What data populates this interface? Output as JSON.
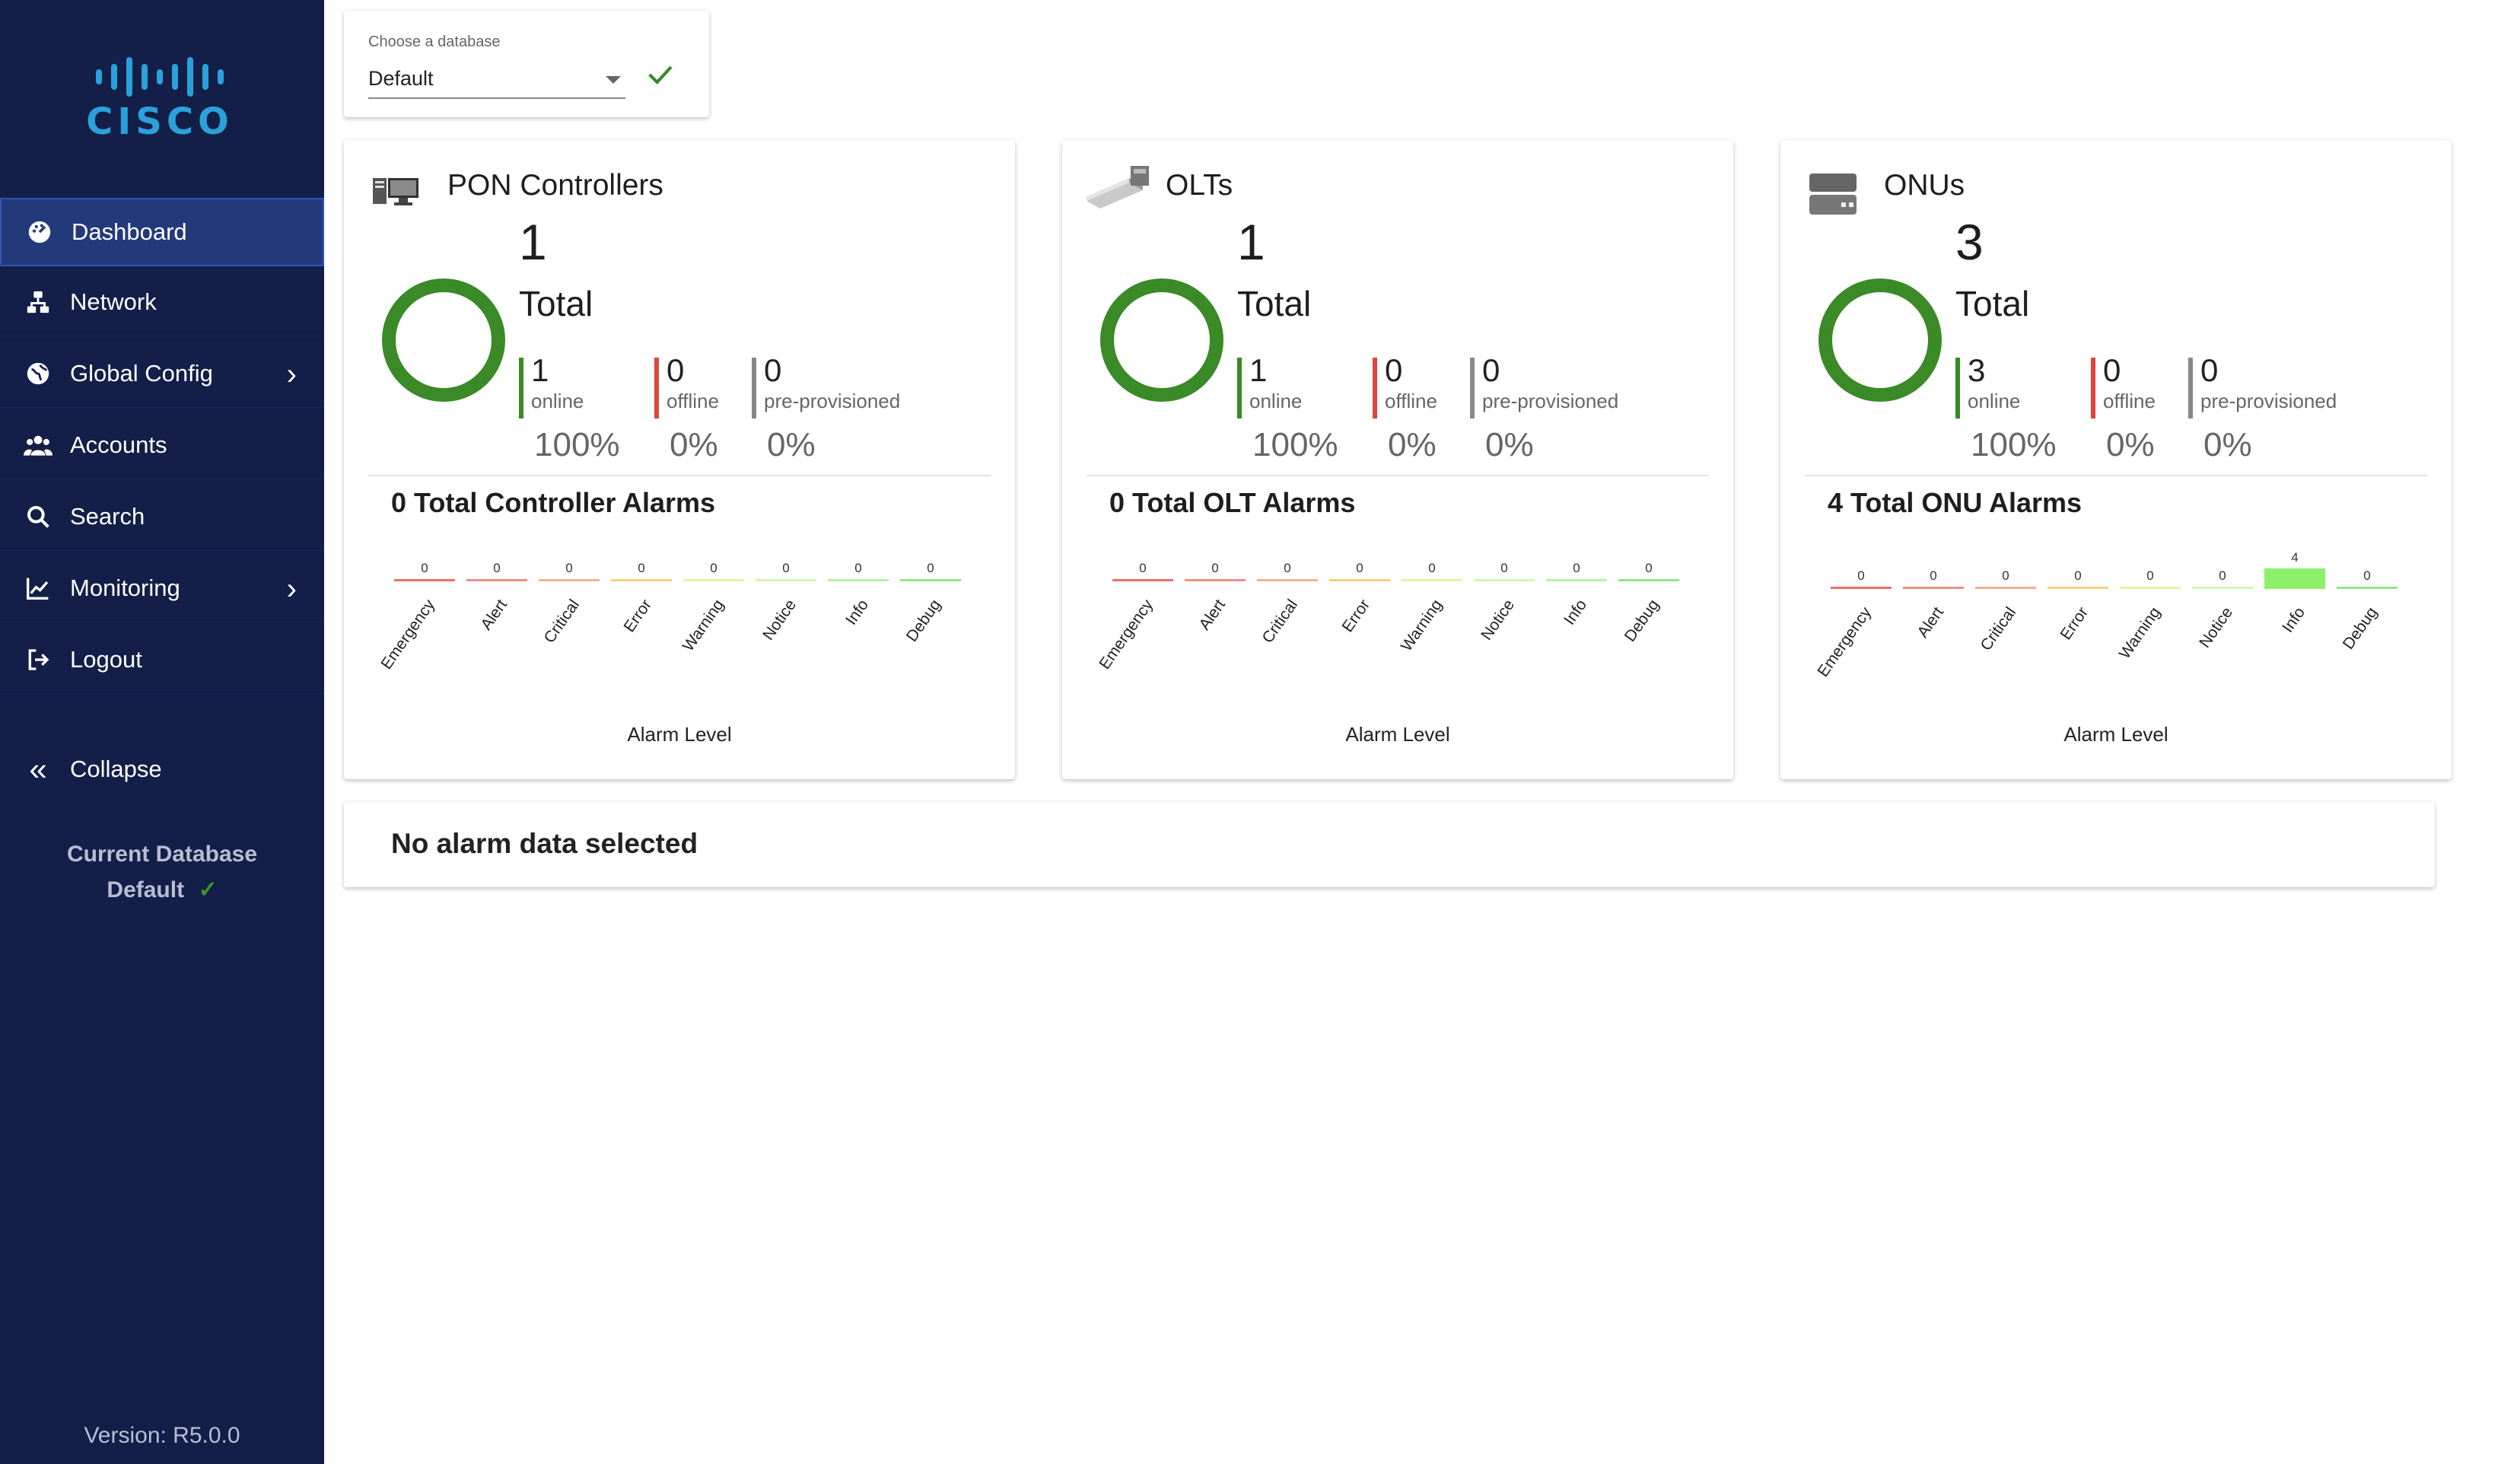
{
  "sidebar": {
    "logo_text": "CISCO",
    "items": [
      {
        "label": "Dashboard",
        "icon": "dashboard-icon"
      },
      {
        "label": "Network",
        "icon": "network-icon"
      },
      {
        "label": "Global Config",
        "icon": "globe-icon"
      },
      {
        "label": "Accounts",
        "icon": "accounts-icon"
      },
      {
        "label": "Search",
        "icon": "search-icon"
      },
      {
        "label": "Monitoring",
        "icon": "chart-line-icon"
      },
      {
        "label": "Logout",
        "icon": "logout-icon"
      }
    ],
    "collapse_label": "Collapse",
    "current_db_label": "Current Database",
    "current_db_value": "Default",
    "version": "Version: R5.0.0"
  },
  "db_chooser": {
    "label": "Choose a database",
    "value": "Default"
  },
  "cards": [
    {
      "title": "PON Controllers",
      "total": "1",
      "total_label": "Total",
      "online": "1",
      "online_label": "online",
      "online_pct": "100%",
      "offline": "0",
      "offline_label": "offline",
      "offline_pct": "0%",
      "preprov": "0",
      "preprov_label": "pre-provisioned",
      "preprov_pct": "0%",
      "alarm_title": "0 Total Controller Alarms",
      "axis_title": "Alarm Level"
    },
    {
      "title": "OLTs",
      "total": "1",
      "total_label": "Total",
      "online": "1",
      "online_label": "online",
      "online_pct": "100%",
      "offline": "0",
      "offline_label": "offline",
      "offline_pct": "0%",
      "preprov": "0",
      "preprov_label": "pre-provisioned",
      "preprov_pct": "0%",
      "alarm_title": "0 Total OLT Alarms",
      "axis_title": "Alarm Level"
    },
    {
      "title": "ONUs",
      "total": "3",
      "total_label": "Total",
      "online": "3",
      "online_label": "online",
      "online_pct": "100%",
      "offline": "0",
      "offline_label": "offline",
      "offline_pct": "0%",
      "preprov": "0",
      "preprov_label": "pre-provisioned",
      "preprov_pct": "0%",
      "alarm_title": "4 Total ONU Alarms",
      "axis_title": "Alarm Level"
    }
  ],
  "chart_data": [
    {
      "type": "bar",
      "categories": [
        "Emergency",
        "Alert",
        "Critical",
        "Error",
        "Warning",
        "Notice",
        "Info",
        "Debug"
      ],
      "values": [
        0,
        0,
        0,
        0,
        0,
        0,
        0,
        0
      ],
      "xlabel": "Alarm Level",
      "colors": [
        "#e8706e",
        "#ee8f86",
        "#f2b38a",
        "#f3d27d",
        "#eef09a",
        "#d5f3b2",
        "#b6f3a4",
        "#8fe88a"
      ]
    },
    {
      "type": "bar",
      "categories": [
        "Emergency",
        "Alert",
        "Critical",
        "Error",
        "Warning",
        "Notice",
        "Info",
        "Debug"
      ],
      "values": [
        0,
        0,
        0,
        0,
        0,
        0,
        0,
        0
      ],
      "xlabel": "Alarm Level",
      "colors": [
        "#e8706e",
        "#ee8f86",
        "#f2b38a",
        "#f3d27d",
        "#eef09a",
        "#d5f3b2",
        "#b6f3a4",
        "#8fe88a"
      ]
    },
    {
      "type": "bar",
      "categories": [
        "Emergency",
        "Alert",
        "Critical",
        "Error",
        "Warning",
        "Notice",
        "Info",
        "Debug"
      ],
      "values": [
        0,
        0,
        0,
        0,
        0,
        0,
        4,
        0
      ],
      "xlabel": "Alarm Level",
      "colors": [
        "#e8706e",
        "#ee8f86",
        "#f2b38a",
        "#f3d27d",
        "#eef09a",
        "#d5f3b2",
        "#8ef06a",
        "#8fe88a"
      ]
    }
  ],
  "no_alarm_text": "No alarm data selected",
  "colors": {
    "sidebar_bg": "#131f48",
    "active_item": "#233a7a",
    "online": "#3a8a28",
    "offline": "#e0443a",
    "preprov": "#888888",
    "ring": "#3a8a28"
  }
}
